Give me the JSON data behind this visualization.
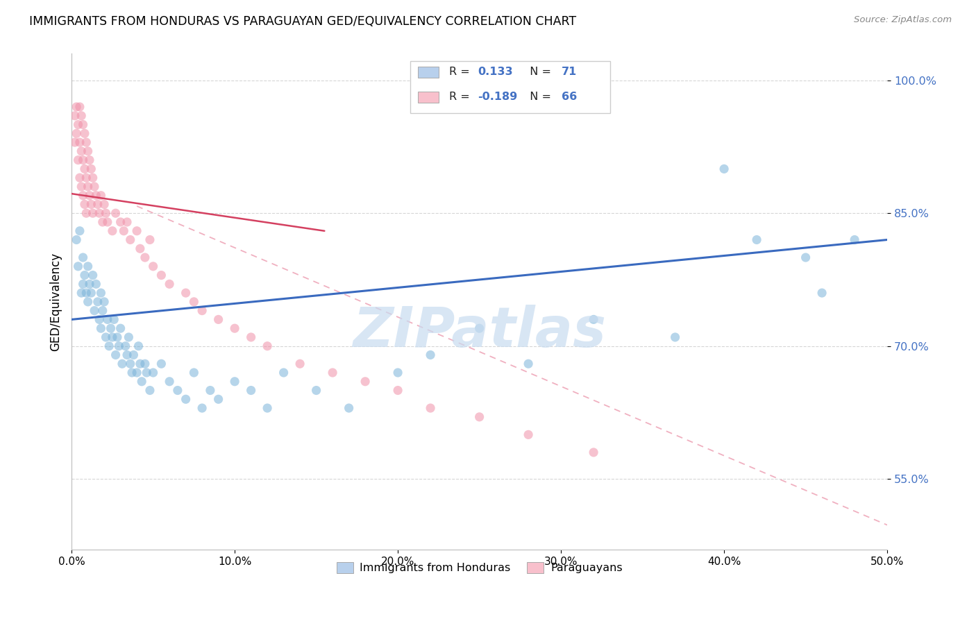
{
  "title": "IMMIGRANTS FROM HONDURAS VS PARAGUAYAN GED/EQUIVALENCY CORRELATION CHART",
  "source": "Source: ZipAtlas.com",
  "ylabel": "GED/Equivalency",
  "xlim": [
    0.0,
    0.5
  ],
  "ylim": [
    0.47,
    1.03
  ],
  "ytick_values": [
    1.0,
    0.85,
    0.7,
    0.55
  ],
  "ytick_labels": [
    "100.0%",
    "85.0%",
    "70.0%",
    "55.0%"
  ],
  "xtick_values": [
    0.0,
    0.1,
    0.2,
    0.3,
    0.4,
    0.5
  ],
  "xtick_labels": [
    "0.0%",
    "10.0%",
    "20.0%",
    "30.0%",
    "40.0%",
    "50.0%"
  ],
  "blue_color": "#7ab3d9",
  "pink_color": "#f090a8",
  "blue_line_color": "#3a6abf",
  "pink_line_color": "#d44060",
  "dashed_line_color": "#f0b0c0",
  "grid_color": "#cccccc",
  "watermark_text": "ZIPatlas",
  "watermark_color": "#c8dcf0",
  "legend_blue_fill": "#b8d0ec",
  "legend_pink_fill": "#f8c0cc",
  "legend_edge_color": "#cccccc",
  "r_n_color": "#4472c4",
  "blue_scatter_x": [
    0.003,
    0.004,
    0.005,
    0.006,
    0.007,
    0.007,
    0.008,
    0.009,
    0.01,
    0.01,
    0.011,
    0.012,
    0.013,
    0.014,
    0.015,
    0.016,
    0.017,
    0.018,
    0.018,
    0.019,
    0.02,
    0.021,
    0.022,
    0.023,
    0.024,
    0.025,
    0.026,
    0.027,
    0.028,
    0.029,
    0.03,
    0.031,
    0.033,
    0.034,
    0.035,
    0.036,
    0.037,
    0.038,
    0.04,
    0.041,
    0.042,
    0.043,
    0.045,
    0.046,
    0.048,
    0.05,
    0.055,
    0.06,
    0.065,
    0.07,
    0.075,
    0.08,
    0.085,
    0.09,
    0.1,
    0.11,
    0.12,
    0.13,
    0.15,
    0.17,
    0.2,
    0.22,
    0.25,
    0.28,
    0.32,
    0.37,
    0.4,
    0.42,
    0.45,
    0.46,
    0.48
  ],
  "blue_scatter_y": [
    0.82,
    0.79,
    0.83,
    0.76,
    0.8,
    0.77,
    0.78,
    0.76,
    0.79,
    0.75,
    0.77,
    0.76,
    0.78,
    0.74,
    0.77,
    0.75,
    0.73,
    0.76,
    0.72,
    0.74,
    0.75,
    0.71,
    0.73,
    0.7,
    0.72,
    0.71,
    0.73,
    0.69,
    0.71,
    0.7,
    0.72,
    0.68,
    0.7,
    0.69,
    0.71,
    0.68,
    0.67,
    0.69,
    0.67,
    0.7,
    0.68,
    0.66,
    0.68,
    0.67,
    0.65,
    0.67,
    0.68,
    0.66,
    0.65,
    0.64,
    0.67,
    0.63,
    0.65,
    0.64,
    0.66,
    0.65,
    0.63,
    0.67,
    0.65,
    0.63,
    0.67,
    0.69,
    0.72,
    0.68,
    0.73,
    0.71,
    0.9,
    0.82,
    0.8,
    0.76,
    0.82
  ],
  "pink_scatter_x": [
    0.002,
    0.002,
    0.003,
    0.003,
    0.004,
    0.004,
    0.005,
    0.005,
    0.005,
    0.006,
    0.006,
    0.006,
    0.007,
    0.007,
    0.007,
    0.008,
    0.008,
    0.008,
    0.009,
    0.009,
    0.009,
    0.01,
    0.01,
    0.011,
    0.011,
    0.012,
    0.012,
    0.013,
    0.013,
    0.014,
    0.015,
    0.016,
    0.017,
    0.018,
    0.019,
    0.02,
    0.021,
    0.022,
    0.025,
    0.027,
    0.03,
    0.032,
    0.034,
    0.036,
    0.04,
    0.042,
    0.045,
    0.048,
    0.05,
    0.055,
    0.06,
    0.07,
    0.075,
    0.08,
    0.09,
    0.1,
    0.11,
    0.12,
    0.14,
    0.16,
    0.18,
    0.2,
    0.22,
    0.25,
    0.28,
    0.32
  ],
  "pink_scatter_y": [
    0.96,
    0.93,
    0.97,
    0.94,
    0.95,
    0.91,
    0.97,
    0.93,
    0.89,
    0.96,
    0.92,
    0.88,
    0.95,
    0.91,
    0.87,
    0.94,
    0.9,
    0.86,
    0.93,
    0.89,
    0.85,
    0.92,
    0.88,
    0.91,
    0.87,
    0.9,
    0.86,
    0.89,
    0.85,
    0.88,
    0.87,
    0.86,
    0.85,
    0.87,
    0.84,
    0.86,
    0.85,
    0.84,
    0.83,
    0.85,
    0.84,
    0.83,
    0.84,
    0.82,
    0.83,
    0.81,
    0.8,
    0.82,
    0.79,
    0.78,
    0.77,
    0.76,
    0.75,
    0.74,
    0.73,
    0.72,
    0.71,
    0.7,
    0.68,
    0.67,
    0.66,
    0.65,
    0.63,
    0.62,
    0.6,
    0.58
  ],
  "blue_trend_x": [
    0.0,
    0.5
  ],
  "blue_trend_y": [
    0.73,
    0.82
  ],
  "pink_trend_x": [
    0.0,
    0.155
  ],
  "pink_trend_y": [
    0.872,
    0.83
  ],
  "dashed_trend_x": [
    0.04,
    0.5
  ],
  "dashed_trend_y": [
    0.858,
    0.498
  ],
  "bottom_labels": [
    "Immigrants from Honduras",
    "Paraguayans"
  ]
}
